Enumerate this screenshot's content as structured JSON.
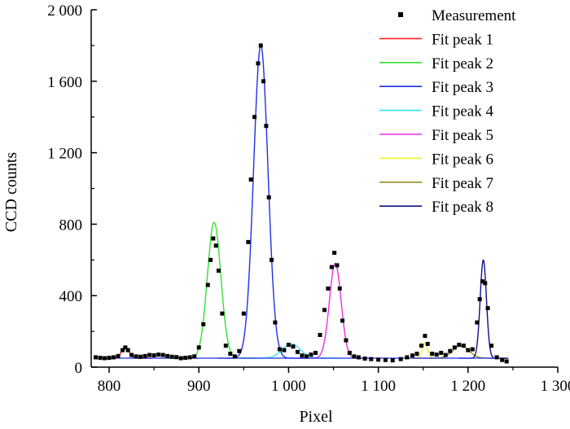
{
  "chart_data": {
    "type": "line",
    "xlabel": "Pixel",
    "ylabel": "CCD counts",
    "xlim": [
      780,
      1300
    ],
    "ylim": [
      0,
      2000
    ],
    "x_ticks": [
      800,
      900,
      1000,
      1100,
      1200,
      1300
    ],
    "x_tick_labels": [
      "800",
      "900",
      "1 000",
      "1 100",
      "1 200",
      "1 300"
    ],
    "y_ticks": [
      0,
      400,
      800,
      1200,
      1600,
      2000
    ],
    "y_tick_labels": [
      "0",
      "400",
      "800",
      "1 200",
      "1 600",
      "2 000"
    ],
    "legend_position": "top-right",
    "baseline": 50,
    "measurement": {
      "name": "Measurement",
      "color": "#000000",
      "points": [
        [
          785,
          55
        ],
        [
          790,
          52
        ],
        [
          795,
          50
        ],
        [
          800,
          52
        ],
        [
          805,
          55
        ],
        [
          810,
          62
        ],
        [
          815,
          95
        ],
        [
          818,
          110
        ],
        [
          821,
          95
        ],
        [
          825,
          68
        ],
        [
          830,
          60
        ],
        [
          835,
          58
        ],
        [
          840,
          62
        ],
        [
          845,
          68
        ],
        [
          850,
          66
        ],
        [
          855,
          70
        ],
        [
          860,
          68
        ],
        [
          865,
          62
        ],
        [
          870,
          58
        ],
        [
          875,
          56
        ],
        [
          880,
          50
        ],
        [
          885,
          52
        ],
        [
          890,
          55
        ],
        [
          895,
          60
        ],
        [
          900,
          110
        ],
        [
          905,
          240
        ],
        [
          910,
          460
        ],
        [
          913,
          600
        ],
        [
          916,
          720
        ],
        [
          919,
          680
        ],
        [
          922,
          540
        ],
        [
          926,
          300
        ],
        [
          930,
          120
        ],
        [
          935,
          75
        ],
        [
          940,
          60
        ],
        [
          945,
          90
        ],
        [
          950,
          300
        ],
        [
          955,
          700
        ],
        [
          958,
          1050
        ],
        [
          962,
          1400
        ],
        [
          966,
          1700
        ],
        [
          969,
          1800
        ],
        [
          972,
          1600
        ],
        [
          975,
          1350
        ],
        [
          978,
          950
        ],
        [
          981,
          600
        ],
        [
          985,
          250
        ],
        [
          990,
          100
        ],
        [
          995,
          95
        ],
        [
          1000,
          125
        ],
        [
          1005,
          115
        ],
        [
          1010,
          85
        ],
        [
          1015,
          65
        ],
        [
          1020,
          60
        ],
        [
          1025,
          70
        ],
        [
          1030,
          80
        ],
        [
          1035,
          180
        ],
        [
          1040,
          320
        ],
        [
          1044,
          440
        ],
        [
          1048,
          560
        ],
        [
          1051,
          640
        ],
        [
          1054,
          570
        ],
        [
          1057,
          440
        ],
        [
          1060,
          260
        ],
        [
          1064,
          150
        ],
        [
          1068,
          80
        ],
        [
          1073,
          60
        ],
        [
          1078,
          55
        ],
        [
          1085,
          48
        ],
        [
          1092,
          45
        ],
        [
          1100,
          42
        ],
        [
          1108,
          40
        ],
        [
          1116,
          38
        ],
        [
          1125,
          45
        ],
        [
          1132,
          55
        ],
        [
          1138,
          65
        ],
        [
          1143,
          75
        ],
        [
          1148,
          120
        ],
        [
          1152,
          175
        ],
        [
          1155,
          130
        ],
        [
          1160,
          75
        ],
        [
          1165,
          70
        ],
        [
          1170,
          80
        ],
        [
          1175,
          68
        ],
        [
          1180,
          90
        ],
        [
          1185,
          110
        ],
        [
          1190,
          125
        ],
        [
          1195,
          120
        ],
        [
          1200,
          95
        ],
        [
          1205,
          100
        ],
        [
          1210,
          250
        ],
        [
          1213,
          380
        ],
        [
          1216,
          480
        ],
        [
          1219,
          470
        ],
        [
          1222,
          330
        ],
        [
          1226,
          120
        ],
        [
          1232,
          55
        ],
        [
          1238,
          40
        ],
        [
          1243,
          32
        ]
      ]
    },
    "series": [
      {
        "name": "Fit peak 1",
        "color": "#ff2020",
        "center": 818,
        "height": 65,
        "sigma": 4
      },
      {
        "name": "Fit peak 2",
        "color": "#33e033",
        "center": 917,
        "height": 760,
        "sigma": 7.5
      },
      {
        "name": "Fit peak 3",
        "color": "#1f2fe8",
        "center": 969,
        "height": 1750,
        "sigma": 8
      },
      {
        "name": "Fit peak 4",
        "color": "#30e8f0",
        "center": 1003,
        "height": 80,
        "sigma": 10
      },
      {
        "name": "Fit peak 5",
        "color": "#e830e8",
        "center": 1052,
        "height": 530,
        "sigma": 6.5
      },
      {
        "name": "Fit peak 6",
        "color": "#f0f020",
        "center": 1152,
        "height": 85,
        "sigma": 3
      },
      {
        "name": "Fit peak 7",
        "color": "#9a8a20",
        "center": 1192,
        "height": 70,
        "sigma": 9
      },
      {
        "name": "Fit peak 8",
        "color": "#101088",
        "center": 1217,
        "height": 550,
        "sigma": 3.5
      }
    ]
  }
}
